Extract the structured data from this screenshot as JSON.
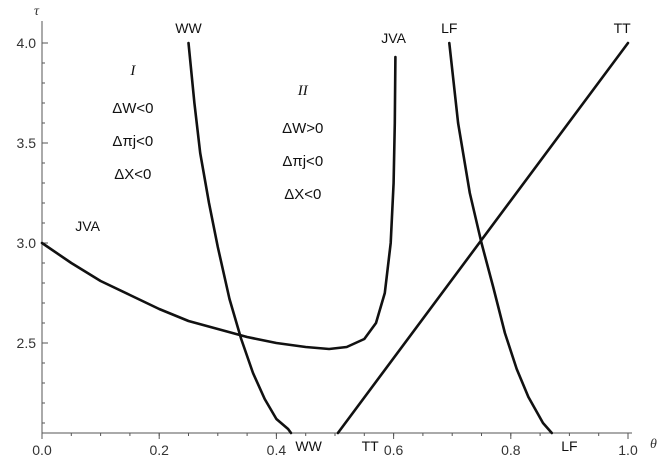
{
  "chart_data": {
    "type": "line",
    "xlabel": "θ",
    "ylabel": "τ",
    "xlim": [
      0.0,
      1.0
    ],
    "ylim": [
      2.05,
      4.0
    ],
    "x_ticks": [
      {
        "value": 0.0,
        "label": "0.0"
      },
      {
        "value": 0.2,
        "label": "0.2"
      },
      {
        "value": 0.4,
        "label": "0.4"
      },
      {
        "value": 0.6,
        "label": "0.6"
      },
      {
        "value": 0.8,
        "label": "0.8"
      },
      {
        "value": 1.0,
        "label": "1.0"
      }
    ],
    "x_minor_step": 0.05,
    "y_ticks": [
      {
        "value": 2.5,
        "label": "2.5"
      },
      {
        "value": 3.0,
        "label": "3.0"
      },
      {
        "value": 3.5,
        "label": "3.5"
      },
      {
        "value": 4.0,
        "label": "4.0"
      }
    ],
    "y_minor_step": 0.1,
    "grid": false,
    "series": [
      {
        "id": "JVA",
        "points": [
          [
            0.0,
            3.0
          ],
          [
            0.05,
            2.9
          ],
          [
            0.1,
            2.81
          ],
          [
            0.15,
            2.74
          ],
          [
            0.2,
            2.67
          ],
          [
            0.25,
            2.61
          ],
          [
            0.3,
            2.57
          ],
          [
            0.35,
            2.53
          ],
          [
            0.4,
            2.5
          ],
          [
            0.45,
            2.48
          ],
          [
            0.49,
            2.47
          ],
          [
            0.52,
            2.48
          ],
          [
            0.55,
            2.52
          ],
          [
            0.57,
            2.6
          ],
          [
            0.585,
            2.75
          ],
          [
            0.595,
            3.0
          ],
          [
            0.6,
            3.3
          ],
          [
            0.602,
            3.6
          ],
          [
            0.603,
            3.93
          ]
        ]
      },
      {
        "id": "WW",
        "points": [
          [
            0.25,
            4.0
          ],
          [
            0.26,
            3.7
          ],
          [
            0.27,
            3.45
          ],
          [
            0.285,
            3.2
          ],
          [
            0.3,
            2.98
          ],
          [
            0.32,
            2.72
          ],
          [
            0.34,
            2.52
          ],
          [
            0.36,
            2.35
          ],
          [
            0.38,
            2.22
          ],
          [
            0.4,
            2.12
          ],
          [
            0.42,
            2.07
          ],
          [
            0.425,
            2.05
          ]
        ]
      },
      {
        "id": "TT",
        "points": [
          [
            0.505,
            2.05
          ],
          [
            1.0,
            4.0
          ]
        ]
      },
      {
        "id": "LF",
        "points": [
          [
            0.695,
            4.0
          ],
          [
            0.71,
            3.6
          ],
          [
            0.73,
            3.25
          ],
          [
            0.75,
            3.0
          ],
          [
            0.77,
            2.78
          ],
          [
            0.79,
            2.55
          ],
          [
            0.81,
            2.37
          ],
          [
            0.83,
            2.23
          ],
          [
            0.855,
            2.1
          ],
          [
            0.87,
            2.05
          ]
        ]
      }
    ],
    "curve_labels": [
      {
        "text": "WW",
        "at": [
          0.25,
          4.0
        ],
        "pos": "top"
      },
      {
        "text": "JVA",
        "at": [
          0.6,
          3.95
        ],
        "pos": "top"
      },
      {
        "text": "LF",
        "at": [
          0.695,
          4.0
        ],
        "pos": "top"
      },
      {
        "text": "TT",
        "at": [
          0.99,
          4.0
        ],
        "pos": "top"
      },
      {
        "text": "JVA",
        "at": [
          0.05,
          3.03
        ],
        "pos": "right"
      },
      {
        "text": "WW",
        "at": [
          0.455,
          2.05
        ],
        "pos": "bottom"
      },
      {
        "text": "TT",
        "at": [
          0.56,
          2.05
        ],
        "pos": "bottom"
      },
      {
        "text": "LF",
        "at": [
          0.9,
          2.05
        ],
        "pos": "bottom"
      }
    ],
    "regions": [
      {
        "name": "I",
        "at": [
          0.155,
          3.84
        ],
        "lines": [
          "ΔW<0",
          "Δπj<0",
          "ΔX<0"
        ]
      },
      {
        "name": "II",
        "at": [
          0.445,
          3.74
        ],
        "lines": [
          "ΔW>0",
          "Δπj<0",
          "ΔX<0"
        ]
      }
    ]
  }
}
